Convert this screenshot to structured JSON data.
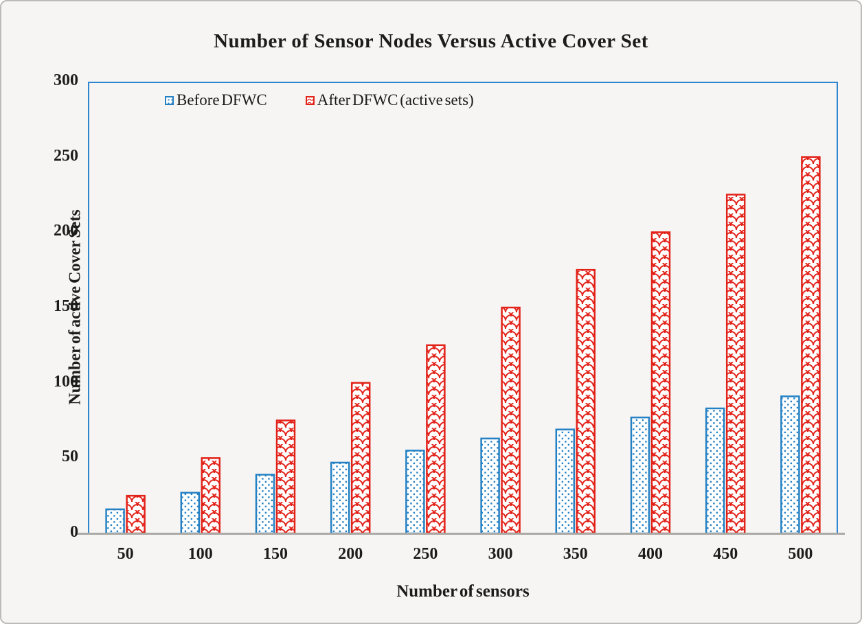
{
  "chart_data": {
    "type": "bar",
    "title": "Number of Sensor Nodes Versus Active Cover Set",
    "xlabel": "Number of sensors",
    "ylabel": "Number of active Cover Sets",
    "categories": [
      50,
      100,
      150,
      200,
      250,
      300,
      350,
      400,
      450,
      500
    ],
    "series": [
      {
        "name": "Before DFWC",
        "values": [
          16,
          27,
          39,
          47,
          55,
          63,
          69,
          77,
          83,
          91
        ],
        "color": "#2581c4",
        "pattern": "dots"
      },
      {
        "name": "After DFWC (active sets)",
        "values": [
          25,
          50,
          75,
          100,
          125,
          150,
          175,
          200,
          225,
          250
        ],
        "color": "#e2231a",
        "pattern": "scales"
      }
    ],
    "ylim": [
      0,
      300
    ],
    "yticks": [
      0,
      50,
      100,
      150,
      200,
      250,
      300
    ],
    "grid": false,
    "legend_position": "top-left-inside",
    "colors": {
      "plot_border": "#2f86cf",
      "baseline": "#aaa9a5",
      "text": "#1c1c1c",
      "background": "#f6f5f3",
      "frame_border": "#bcbbb9",
      "bar_fill": "#ffffff"
    }
  }
}
